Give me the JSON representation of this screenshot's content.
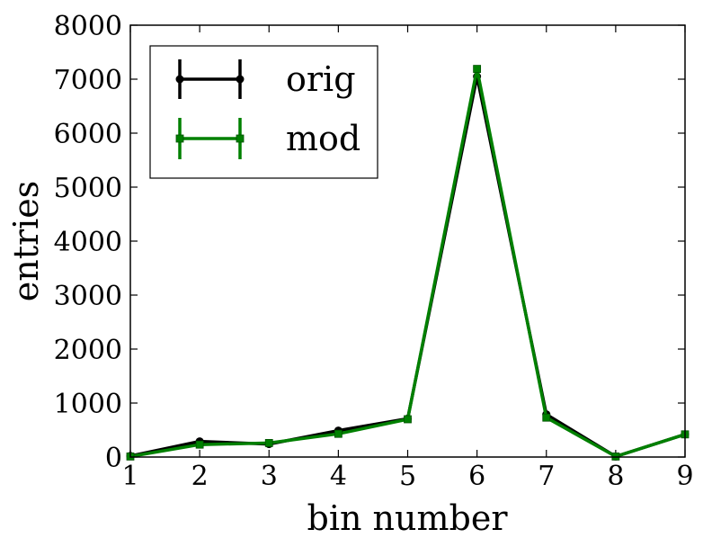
{
  "chart_data": {
    "type": "line",
    "x": [
      1,
      2,
      3,
      4,
      5,
      6,
      7,
      8,
      9
    ],
    "series": [
      {
        "name": "orig",
        "color": "#000000",
        "marker": "circle",
        "values": [
          20,
          290,
          240,
          490,
          710,
          7050,
          790,
          10,
          420
        ]
      },
      {
        "name": "mod",
        "color": "#008000",
        "marker": "square",
        "values": [
          10,
          230,
          260,
          430,
          700,
          7190,
          730,
          10,
          420
        ]
      }
    ],
    "xlabel": "bin number",
    "ylabel": "entries",
    "xlim": [
      1,
      9
    ],
    "ylim": [
      0,
      8000
    ],
    "xticks": [
      "1",
      "2",
      "3",
      "4",
      "5",
      "6",
      "7",
      "8",
      "9"
    ],
    "yticks": [
      "0",
      "1000",
      "2000",
      "3000",
      "4000",
      "5000",
      "6000",
      "7000",
      "8000"
    ],
    "grid": false,
    "legend_position": "top-left"
  }
}
